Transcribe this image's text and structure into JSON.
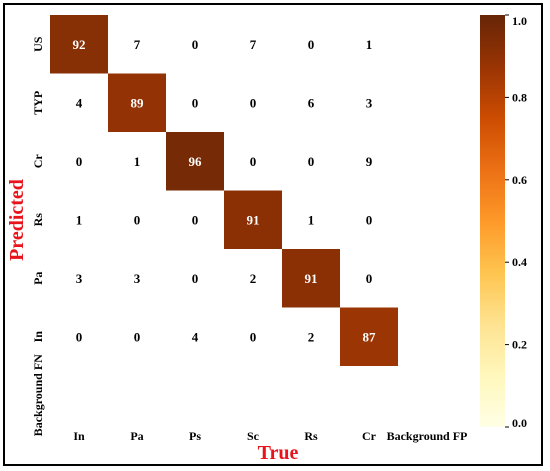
{
  "chart_data": {
    "type": "heatmap",
    "title": "",
    "xlabel": "True",
    "ylabel": "Predicted",
    "x_categories": [
      "In",
      "Pa",
      "Ps",
      "Sc",
      "Rs",
      "Cr",
      "Background FP"
    ],
    "y_categories": [
      "US",
      "TYP",
      "Cr",
      "Rs",
      "Pa",
      "In",
      "Background FN"
    ],
    "values": [
      [
        92,
        7,
        0,
        7,
        0,
        1,
        null
      ],
      [
        4,
        89,
        0,
        0,
        6,
        3,
        null
      ],
      [
        0,
        1,
        96,
        0,
        0,
        9,
        null
      ],
      [
        1,
        0,
        0,
        91,
        1,
        0,
        null
      ],
      [
        3,
        3,
        0,
        2,
        91,
        0,
        null
      ],
      [
        0,
        0,
        4,
        0,
        2,
        87,
        null
      ],
      [
        null,
        null,
        null,
        null,
        null,
        null,
        null
      ]
    ],
    "colorbar": {
      "range": [
        0.0,
        1.0
      ],
      "ticks": [
        "0.0",
        "0.2",
        "0.4",
        "0.6",
        "0.8",
        "1.0"
      ],
      "colormap": "YlOrBr"
    },
    "value_scale": 100
  }
}
